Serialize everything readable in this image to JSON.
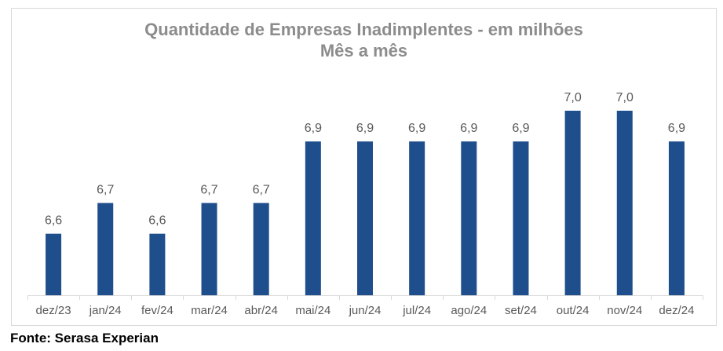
{
  "chart_data": {
    "type": "bar",
    "title": "Quantidade de Empresas Inadimplentes - em milhões",
    "subtitle": "Mês a mês",
    "categories": [
      "dez/23",
      "jan/24",
      "fev/24",
      "mar/24",
      "abr/24",
      "mai/24",
      "jun/24",
      "jul/24",
      "ago/24",
      "set/24",
      "out/24",
      "nov/24",
      "dez/24"
    ],
    "values": [
      6.6,
      6.7,
      6.6,
      6.7,
      6.7,
      6.9,
      6.9,
      6.9,
      6.9,
      6.9,
      7.0,
      7.0,
      6.9
    ],
    "value_labels": [
      "6,6",
      "6,7",
      "6,6",
      "6,7",
      "6,7",
      "6,9",
      "6,9",
      "6,9",
      "6,9",
      "6,9",
      "7,0",
      "7,0",
      "6,9"
    ],
    "ylim": [
      6.4,
      7.0
    ],
    "grid": false,
    "legend": "none",
    "bar_color": "#1f4e8c"
  },
  "source": "Fonte: Serasa Experian"
}
